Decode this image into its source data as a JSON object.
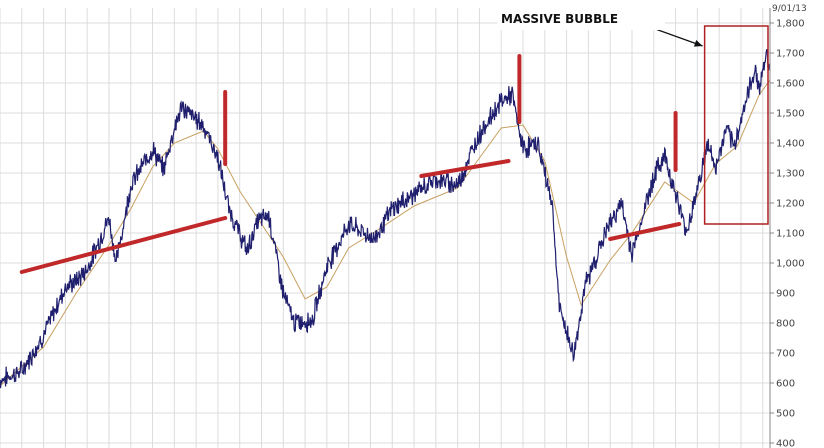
{
  "chart_data": {
    "type": "line",
    "title": "",
    "xlabel": "",
    "ylabel": "",
    "date_label": "9/01/13",
    "x_range": [
      "1996-01",
      "2013-09"
    ],
    "ylim": [
      400,
      1800
    ],
    "y_ticks": [
      "400",
      "500",
      "600",
      "700",
      "800",
      "900",
      "1,000",
      "1,100",
      "1,200",
      "1,300",
      "1,400",
      "1,500",
      "1,600",
      "1,700",
      "1,800"
    ],
    "grid": true,
    "series": [
      {
        "name": "",
        "color": "#1f1f6e",
        "points": [
          [
            "1996-01",
            610
          ],
          [
            "1996-07",
            640
          ],
          [
            "1997-01",
            760
          ],
          [
            "1997-07",
            920
          ],
          [
            "1997-10",
            940
          ],
          [
            "1998-01",
            980
          ],
          [
            "1998-07",
            1150
          ],
          [
            "1998-09",
            1000
          ],
          [
            "1999-01",
            1260
          ],
          [
            "1999-07",
            1380
          ],
          [
            "1999-10",
            1310
          ],
          [
            "2000-01",
            1450
          ],
          [
            "2000-03",
            1520
          ],
          [
            "2000-09",
            1460
          ],
          [
            "2001-01",
            1350
          ],
          [
            "2001-04",
            1180
          ],
          [
            "2001-09",
            1040
          ],
          [
            "2001-12",
            1140
          ],
          [
            "2002-03",
            1160
          ],
          [
            "2002-07",
            900
          ],
          [
            "2002-10",
            800
          ],
          [
            "2003-03",
            810
          ],
          [
            "2003-07",
            990
          ],
          [
            "2004-01",
            1130
          ],
          [
            "2004-08",
            1080
          ],
          [
            "2005-01",
            1180
          ],
          [
            "2005-07",
            1230
          ],
          [
            "2006-01",
            1280
          ],
          [
            "2006-07",
            1260
          ],
          [
            "2007-01",
            1430
          ],
          [
            "2007-07",
            1540
          ],
          [
            "2007-10",
            1560
          ],
          [
            "2008-01",
            1380
          ],
          [
            "2008-05",
            1400
          ],
          [
            "2008-09",
            1200
          ],
          [
            "2008-11",
            850
          ],
          [
            "2009-03",
            690
          ],
          [
            "2009-06",
            920
          ],
          [
            "2009-12",
            1110
          ],
          [
            "2010-04",
            1200
          ],
          [
            "2010-07",
            1030
          ],
          [
            "2011-01",
            1290
          ],
          [
            "2011-04",
            1360
          ],
          [
            "2011-10",
            1100
          ],
          [
            "2012-04",
            1400
          ],
          [
            "2012-06",
            1310
          ],
          [
            "2012-09",
            1450
          ],
          [
            "2012-11",
            1380
          ],
          [
            "2013-01",
            1480
          ],
          [
            "2013-05",
            1650
          ],
          [
            "2013-06",
            1580
          ],
          [
            "2013-08",
            1700
          ],
          [
            "2013-09",
            1640
          ]
        ]
      },
      {
        "name": "",
        "color": "#c8a060",
        "points": [
          [
            "1996-01",
            590
          ],
          [
            "1997-01",
            720
          ],
          [
            "1997-10",
            900
          ],
          [
            "1998-07",
            1060
          ],
          [
            "1999-01",
            1180
          ],
          [
            "1999-07",
            1320
          ],
          [
            "2000-01",
            1400
          ],
          [
            "2000-09",
            1440
          ],
          [
            "2001-01",
            1380
          ],
          [
            "2001-07",
            1240
          ],
          [
            "2002-01",
            1130
          ],
          [
            "2002-07",
            1020
          ],
          [
            "2003-01",
            880
          ],
          [
            "2003-07",
            920
          ],
          [
            "2004-01",
            1050
          ],
          [
            "2004-09",
            1110
          ],
          [
            "2005-07",
            1190
          ],
          [
            "2006-07",
            1250
          ],
          [
            "2007-01",
            1350
          ],
          [
            "2007-07",
            1450
          ],
          [
            "2008-01",
            1460
          ],
          [
            "2008-07",
            1340
          ],
          [
            "2009-01",
            1020
          ],
          [
            "2009-05",
            860
          ],
          [
            "2010-01",
            1010
          ],
          [
            "2010-07",
            1100
          ],
          [
            "2011-04",
            1270
          ],
          [
            "2011-12",
            1200
          ],
          [
            "2012-06",
            1330
          ],
          [
            "2012-12",
            1390
          ],
          [
            "2013-06",
            1560
          ],
          [
            "2013-09",
            1610
          ]
        ]
      }
    ],
    "annotations": {
      "text": "MASSIVE BUBBLE",
      "box": {
        "from": "2012-03",
        "to": "2013-09",
        "y_low": 1130,
        "y_high": 1790
      },
      "bars": [
        {
          "x": "2001-03",
          "y_low": 1330,
          "y_high": 1570
        },
        {
          "x": "2007-12",
          "y_low": 1470,
          "y_high": 1690
        },
        {
          "x": "2011-07",
          "y_low": 1310,
          "y_high": 1500
        }
      ],
      "trend_lines": [
        {
          "from": [
            "1996-07",
            970
          ],
          "to": [
            "2001-03",
            1150
          ]
        },
        {
          "from": [
            "2005-09",
            1290
          ],
          "to": [
            "2007-09",
            1340
          ]
        },
        {
          "from": [
            "2010-01",
            1080
          ],
          "to": [
            "2011-08",
            1130
          ]
        }
      ]
    }
  }
}
